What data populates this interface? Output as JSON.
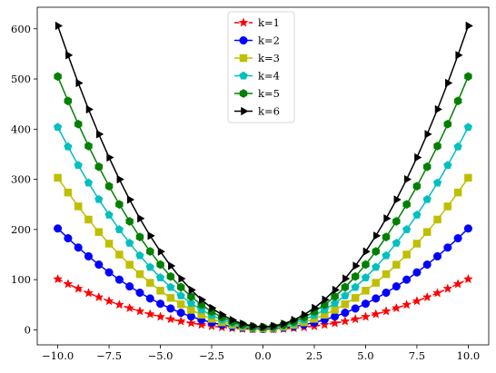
{
  "chart_data": {
    "type": "line",
    "title": "",
    "xlabel": "",
    "ylabel": "",
    "xlim": [
      -11.0,
      11.0
    ],
    "ylim": [
      -30,
      643
    ],
    "x_ticks": [
      -10.0,
      -7.5,
      -5.0,
      -2.5,
      0.0,
      2.5,
      5.0,
      7.5,
      10.0
    ],
    "x_tick_labels": [
      "−10.0",
      "−7.5",
      "−5.0",
      "−2.5",
      "0.0",
      "2.5",
      "5.0",
      "7.5",
      "10.0"
    ],
    "y_ticks": [
      0,
      100,
      200,
      300,
      400,
      500,
      600
    ],
    "y_tick_labels": [
      "0",
      "100",
      "200",
      "300",
      "400",
      "500",
      "600"
    ],
    "x": [
      -10.0,
      -9.5,
      -9.0,
      -8.5,
      -8.0,
      -7.5,
      -7.0,
      -6.5,
      -6.0,
      -5.5,
      -5.0,
      -4.5,
      -4.0,
      -3.5,
      -3.0,
      -2.5,
      -2.0,
      -1.5,
      -1.0,
      -0.5,
      0.0,
      0.5,
      1.0,
      1.5,
      2.0,
      2.5,
      3.0,
      3.5,
      4.0,
      4.5,
      5.0,
      5.5,
      6.0,
      6.5,
      7.0,
      7.5,
      8.0,
      8.5,
      9.0,
      9.5,
      10.0
    ],
    "formula_note": "",
    "legend_position": "upper center",
    "grid": false,
    "series": [
      {
        "name": "k=1",
        "k": 1,
        "color": "#ff0000",
        "marker": "star",
        "linestyle": "dashed"
      },
      {
        "name": "k=2",
        "k": 2,
        "color": "#0000ff",
        "marker": "circle",
        "linestyle": "solid"
      },
      {
        "name": "k=3",
        "k": 3,
        "color": "#bfbf00",
        "marker": "square",
        "linestyle": "solid"
      },
      {
        "name": "k=4",
        "k": 4,
        "color": "#00bfbf",
        "marker": "pentagon",
        "linestyle": "solid"
      },
      {
        "name": "k=5",
        "k": 5,
        "color": "#008000",
        "marker": "hexagon",
        "linestyle": "solid"
      },
      {
        "name": "k=6",
        "k": 6,
        "color": "#000000",
        "marker": "triangle-right",
        "linestyle": "solid"
      }
    ]
  }
}
